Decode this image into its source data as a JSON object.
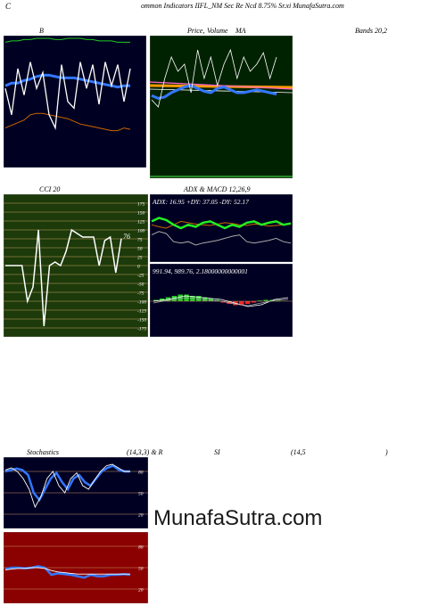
{
  "header": {
    "left": "C",
    "title": "ommon Indicators IIFL_NM Sec Re Ncd 8.75% Sr.xi MunafaSutra.com"
  },
  "labels": {
    "bb": "B",
    "price": "Price, ",
    "volume": "Volume",
    "ma": "MA",
    "bands": "Bands 20,2",
    "cci": "CCI 20",
    "adx_macd": "ADX  & MACD 12,26,9",
    "stoch": "Stochastics",
    "stoch_params": "(14,3,3) & R",
    "rsi": "SI",
    "rsi_params": "(14,5",
    "rsi_close": ")"
  },
  "watermark": "MunafaSutra.com",
  "colors": {
    "panel_dark": "#000022",
    "panel_green": "#002200",
    "cci_bg": "#1c3a0a",
    "rsi_bg": "#8b0000",
    "blue_line": "#3377ff",
    "green_line": "#22cc22",
    "orange_line": "#cc6600"
  },
  "chart_data": [
    {
      "type": "line",
      "panel": "bollinger",
      "series": [
        {
          "values": [
            95,
            96,
            96,
            97,
            97,
            98,
            98,
            98,
            97,
            97,
            98,
            98,
            98,
            97,
            97,
            96,
            96,
            96,
            95,
            95,
            95
          ]
        },
        {
          "values": [
            62,
            64,
            64,
            66,
            67,
            69,
            70,
            70,
            69,
            68,
            68,
            68,
            67,
            66,
            65,
            64,
            63,
            62,
            61,
            62,
            62
          ]
        },
        {
          "values": [
            30,
            32,
            34,
            36,
            40,
            41,
            41,
            40,
            39,
            38,
            37,
            35,
            33,
            32,
            31,
            30,
            29,
            28,
            28,
            30,
            29
          ]
        },
        {
          "values": [
            60,
            40,
            75,
            55,
            80,
            60,
            72,
            40,
            30,
            78,
            50,
            45,
            80,
            60,
            78,
            48,
            80,
            62,
            78,
            50,
            75
          ]
        }
      ]
    },
    {
      "type": "line",
      "panel": "price_volume_ma",
      "series": [
        {
          "values": [
            58,
            56,
            57,
            60,
            62,
            64,
            65,
            63,
            61,
            60,
            63,
            64,
            62,
            60,
            60,
            61,
            62,
            61,
            60,
            59
          ]
        },
        {
          "values": [
            25,
            20,
            40,
            55,
            45,
            50,
            30,
            60,
            40,
            55,
            35,
            50,
            60,
            40,
            55,
            45,
            50,
            58,
            40,
            55
          ]
        }
      ]
    },
    {
      "type": "line",
      "panel": "cci",
      "yticks": [
        175,
        150,
        125,
        100,
        75,
        50,
        25,
        0,
        -25,
        -50,
        -75,
        -100,
        -125,
        -150,
        -175
      ],
      "last_value": "76",
      "values": [
        0,
        0,
        0,
        0,
        -100,
        -60,
        100,
        -170,
        0,
        10,
        0,
        40,
        100,
        90,
        80,
        80,
        80,
        0,
        70,
        80,
        -20,
        76
      ]
    },
    {
      "type": "line",
      "panel": "adx",
      "readout": "ADX: 16.95 +DY: 37.05 -DY: 52.17",
      "series": [
        {
          "values": [
            40,
            45,
            42,
            30,
            28,
            30,
            25,
            28,
            30,
            32,
            35,
            38,
            40,
            30,
            28,
            30,
            32,
            35,
            30,
            28
          ]
        },
        {
          "values": [
            55,
            52,
            50,
            55,
            60,
            58,
            56,
            55,
            54,
            56,
            58,
            57,
            55,
            54,
            56,
            55,
            53,
            54,
            55,
            56
          ]
        },
        {
          "values": [
            60,
            65,
            62,
            55,
            50,
            55,
            52,
            58,
            60,
            55,
            50,
            55,
            52,
            58,
            60,
            55,
            58,
            60,
            55,
            57
          ]
        }
      ]
    },
    {
      "type": "bar",
      "panel": "macd",
      "readout": "991.94,  989.76,  2.18000000000001",
      "histogram": [
        1,
        2,
        3,
        4,
        5,
        5,
        4,
        4,
        3,
        2,
        1,
        -1,
        -2,
        -3,
        -3,
        -2,
        -1,
        0.5,
        1,
        1,
        0.5
      ]
    },
    {
      "type": "line",
      "panel": "stochastics",
      "yticks": [
        80,
        50,
        20
      ],
      "series": [
        {
          "values": [
            80,
            82,
            84,
            82,
            75,
            50,
            40,
            55,
            70,
            78,
            65,
            55,
            70,
            75,
            65,
            60,
            70,
            80,
            85,
            88,
            82,
            80,
            80
          ]
        },
        {
          "values": [
            82,
            85,
            80,
            70,
            55,
            30,
            45,
            70,
            80,
            60,
            50,
            70,
            78,
            60,
            55,
            68,
            80,
            88,
            90,
            85,
            80,
            80
          ]
        }
      ]
    },
    {
      "type": "line",
      "panel": "rsi",
      "yticks": [
        80,
        50,
        20
      ],
      "series": [
        {
          "values": [
            48,
            50,
            50,
            49,
            50,
            52,
            50,
            40,
            42,
            41,
            40,
            38,
            36,
            40,
            38,
            38,
            40,
            40,
            41,
            40
          ]
        },
        {
          "values": [
            47,
            48,
            49,
            49,
            50,
            50,
            49,
            46,
            44,
            43,
            42,
            41,
            41,
            41,
            41,
            41,
            41,
            41,
            41,
            41
          ]
        }
      ]
    }
  ]
}
